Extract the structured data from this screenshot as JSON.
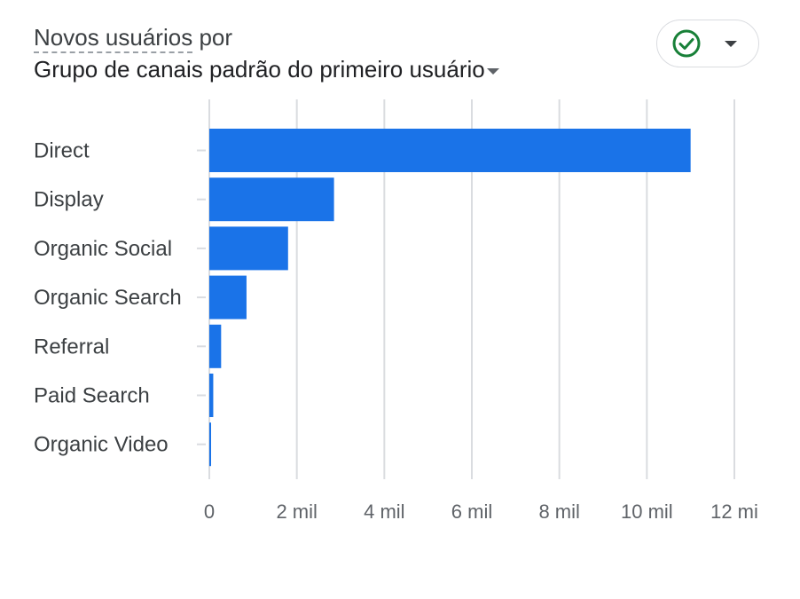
{
  "header": {
    "metric_label": "Novos usuários",
    "connector": "por",
    "dimension_label": "Grupo de canais padrão do primeiro usuário"
  },
  "status": {
    "icon": "check-circle-icon",
    "color": "#188038"
  },
  "colors": {
    "bar": "#1a73e8",
    "grid": "#dadce0"
  },
  "chart_data": {
    "type": "bar",
    "orientation": "horizontal",
    "categories": [
      "Direct",
      "Display",
      "Organic Social",
      "Organic Search",
      "Referral",
      "Paid Search",
      "Organic Video"
    ],
    "values": [
      11000,
      2850,
      1800,
      850,
      270,
      90,
      20
    ],
    "xlim": [
      0,
      12000
    ],
    "x_ticks": [
      0,
      2000,
      4000,
      6000,
      8000,
      10000,
      12000
    ],
    "x_tick_labels": [
      "0",
      "2 mil",
      "4 mil",
      "6 mil",
      "8 mil",
      "10 mil",
      "12 mi"
    ],
    "grid": true
  }
}
